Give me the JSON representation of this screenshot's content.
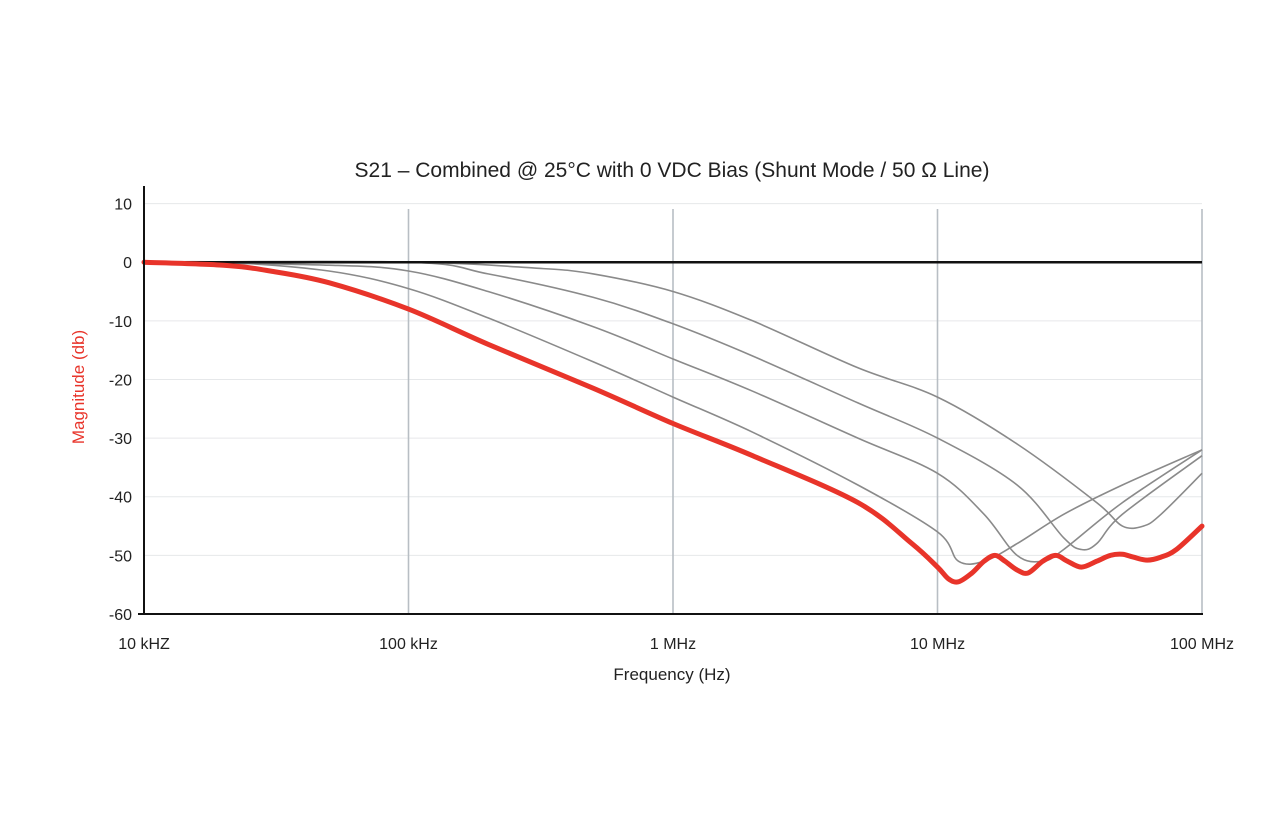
{
  "chart_data": {
    "type": "line",
    "title": "S21 – Combined @ 25°C with 0 VDC Bias (Shunt Mode / 50 Ω Line)",
    "xlabel": "Frequency (Hz)",
    "ylabel": "Magnitude (db)",
    "x_scale": "log",
    "xlim": [
      10000,
      100000000
    ],
    "ylim": [
      -60,
      13
    ],
    "x_ticks": [
      {
        "value": 10000,
        "label": "10 kHZ"
      },
      {
        "value": 100000,
        "label": "100 kHz"
      },
      {
        "value": 1000000,
        "label": "1 MHz"
      },
      {
        "value": 10000000,
        "label": "10 MHz"
      },
      {
        "value": 100000000,
        "label": "100 MHz"
      }
    ],
    "y_ticks": [
      {
        "value": 10,
        "label": "10"
      },
      {
        "value": 0,
        "label": "0"
      },
      {
        "value": -10,
        "label": "-10"
      },
      {
        "value": -20,
        "label": "-20"
      },
      {
        "value": -30,
        "label": "-30"
      },
      {
        "value": -40,
        "label": "-40"
      },
      {
        "value": -50,
        "label": "-50"
      },
      {
        "value": -60,
        "label": "-60"
      }
    ],
    "grid": true,
    "colors": {
      "combined": "#e8342a",
      "components": "#8a8a8a",
      "reference": "#111111",
      "grid": "#b8bec4",
      "ylabel": "#e8342a"
    },
    "series": [
      {
        "role": "reference",
        "x": [
          10000,
          100000000
        ],
        "y": [
          0,
          0
        ]
      },
      {
        "role": "component",
        "x": [
          10000,
          20000,
          50000,
          100000,
          200000,
          500000,
          1000000,
          2000000,
          5000000,
          10000000,
          12000000,
          15000000,
          20000000,
          30000000,
          50000000,
          100000000
        ],
        "y": [
          0,
          0,
          -1.5,
          -4.5,
          -9.5,
          -17,
          -23,
          -29,
          -38,
          -46,
          -51,
          -51,
          -48,
          -43,
          -38,
          -32
        ]
      },
      {
        "role": "component",
        "x": [
          10000,
          50000,
          100000,
          200000,
          500000,
          1000000,
          2000000,
          5000000,
          10000000,
          15000000,
          20000000,
          25000000,
          30000000,
          50000000,
          100000000
        ],
        "y": [
          0,
          -0.5,
          -1.5,
          -5,
          -11,
          -16.5,
          -22,
          -30,
          -36,
          -43,
          -50,
          -51,
          -49,
          -41,
          -32
        ]
      },
      {
        "role": "component",
        "x": [
          10000,
          100000,
          200000,
          500000,
          1000000,
          2000000,
          5000000,
          10000000,
          20000000,
          30000000,
          35000000,
          40000000,
          50000000,
          100000000
        ],
        "y": [
          0,
          0,
          -2,
          -6,
          -10.5,
          -16,
          -24,
          -30,
          -38,
          -47,
          -49,
          -48,
          -43,
          -33
        ]
      },
      {
        "role": "component",
        "x": [
          10000,
          100000,
          300000,
          500000,
          1000000,
          2000000,
          5000000,
          10000000,
          20000000,
          40000000,
          50000000,
          60000000,
          70000000,
          100000000
        ],
        "y": [
          0,
          0,
          -1,
          -2,
          -5,
          -10,
          -18,
          -23,
          -31,
          -41,
          -45,
          -45,
          -43,
          -36
        ]
      },
      {
        "role": "combined",
        "x": [
          10000,
          20000,
          30000,
          50000,
          100000,
          200000,
          500000,
          1000000,
          2000000,
          5000000,
          8000000,
          10000000,
          11000000,
          12000000,
          13500000,
          15000000,
          16500000,
          18000000,
          20000000,
          22000000,
          25000000,
          28000000,
          31000000,
          35000000,
          40000000,
          45000000,
          50000000,
          55000000,
          62000000,
          70000000,
          80000000,
          100000000
        ],
        "y": [
          0,
          -0.5,
          -1.5,
          -3.5,
          -8,
          -14,
          -21.5,
          -27.5,
          -33,
          -41,
          -48,
          -52,
          -54,
          -54.5,
          -53,
          -51,
          -50,
          -51,
          -52.5,
          -53,
          -51,
          -50,
          -51,
          -52,
          -51,
          -50,
          -49.8,
          -50.3,
          -50.8,
          -50.3,
          -49,
          -45
        ]
      }
    ]
  }
}
